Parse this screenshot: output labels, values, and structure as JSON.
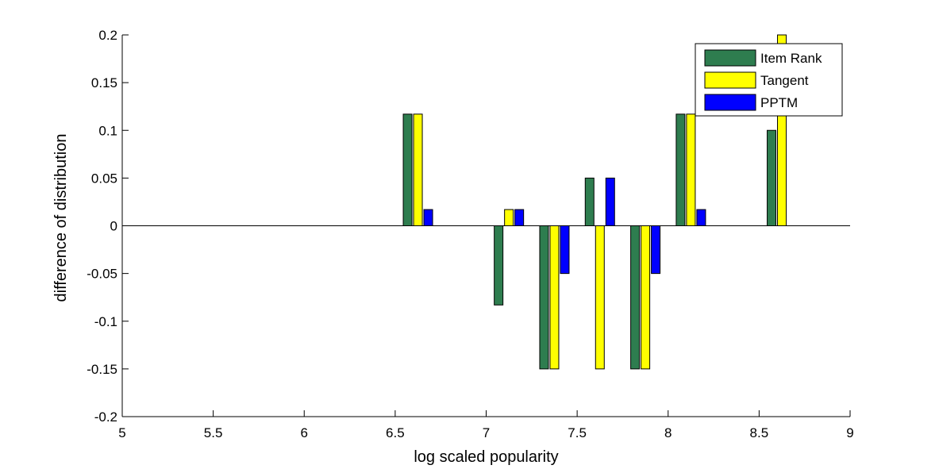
{
  "chart_data": {
    "type": "bar",
    "xlabel": "log scaled popularity",
    "ylabel": "difference of distribution",
    "xlim": [
      5,
      9
    ],
    "ylim": [
      -0.2,
      0.2
    ],
    "xticks": [
      "5",
      "5.5",
      "6",
      "6.5",
      "7",
      "7.5",
      "8",
      "8.5",
      "9"
    ],
    "yticks": [
      "-0.2",
      "-0.15",
      "-0.1",
      "-0.05",
      "0",
      "0.05",
      "0.1",
      "0.15",
      "0.2"
    ],
    "grid": false,
    "legend_position": "top-right",
    "x": [
      6.625,
      7.125,
      7.375,
      7.625,
      7.875,
      8.125,
      8.625
    ],
    "series": [
      {
        "name": "Item Rank",
        "color": "#2e7d4f",
        "values": [
          0.117,
          -0.083,
          -0.15,
          0.05,
          -0.15,
          0.117,
          0.1
        ]
      },
      {
        "name": "Tangent",
        "color": "#ffff00",
        "values": [
          0.117,
          0.017,
          -0.15,
          -0.15,
          -0.15,
          0.117,
          0.2
        ]
      },
      {
        "name": "PPTM",
        "color": "#0000ff",
        "values": [
          0.017,
          0.017,
          -0.05,
          0.05,
          -0.05,
          0.017,
          0
        ]
      }
    ]
  }
}
